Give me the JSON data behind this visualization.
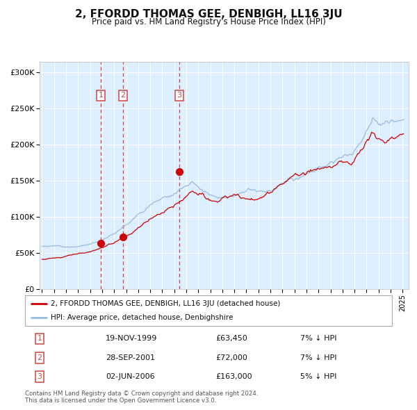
{
  "title": "2, FFORDD THOMAS GEE, DENBIGH, LL16 3JU",
  "subtitle": "Price paid vs. HM Land Registry's House Price Index (HPI)",
  "footer_line1": "Contains HM Land Registry data © Crown copyright and database right 2024.",
  "footer_line2": "This data is licensed under the Open Government Licence v3.0.",
  "legend_label_red": "2, FFORDD THOMAS GEE, DENBIGH, LL16 3JU (detached house)",
  "legend_label_blue": "HPI: Average price, detached house, Denbighshire",
  "transactions": [
    {
      "num": 1,
      "date": "19-NOV-1999",
      "price": 63450,
      "hpi_pct": "7% ↓ HPI",
      "year": 1999.88
    },
    {
      "num": 2,
      "date": "28-SEP-2001",
      "price": 72000,
      "hpi_pct": "7% ↓ HPI",
      "year": 2001.74
    },
    {
      "num": 3,
      "date": "02-JUN-2006",
      "price": 163000,
      "hpi_pct": "5% ↓ HPI",
      "year": 2006.42
    }
  ],
  "ylim": [
    0,
    310000
  ],
  "yticks": [
    0,
    50000,
    100000,
    150000,
    200000,
    250000,
    300000
  ],
  "ytick_labels": [
    "£0",
    "£50K",
    "£100K",
    "£150K",
    "£200K",
    "£250K",
    "£300K"
  ],
  "color_red": "#cc0000",
  "color_blue": "#99bbdd",
  "color_bg": "#ddeeff",
  "color_grid": "#ffffff",
  "color_dashed": "#cc4444",
  "xstart": 1995,
  "xend": 2025
}
